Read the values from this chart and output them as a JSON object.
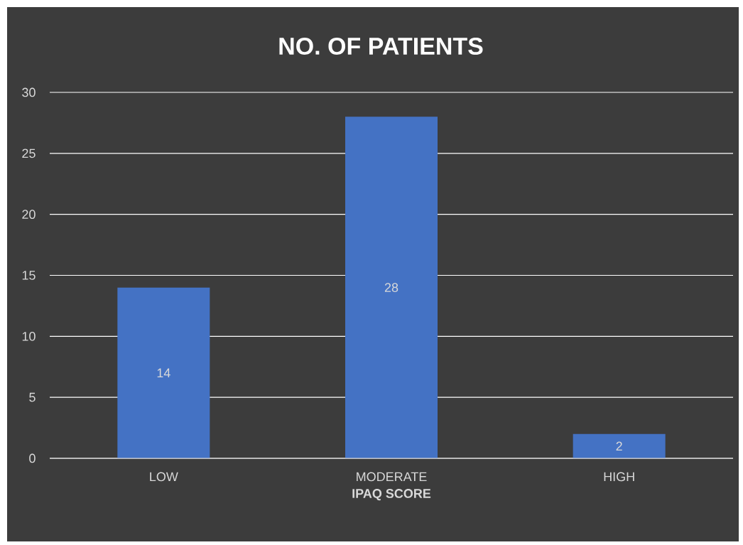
{
  "chart_data": {
    "type": "bar",
    "title": "NO. OF PATIENTS",
    "xlabel": "IPAQ SCORE",
    "categories": [
      "LOW",
      "MODERATE",
      "HIGH"
    ],
    "values": [
      14,
      28,
      2
    ],
    "color": "#4472c4",
    "ylim": [
      0,
      30
    ],
    "yticks": [
      0,
      5,
      10,
      15,
      20,
      25,
      30
    ],
    "grid": "y",
    "data_labels": true
  }
}
